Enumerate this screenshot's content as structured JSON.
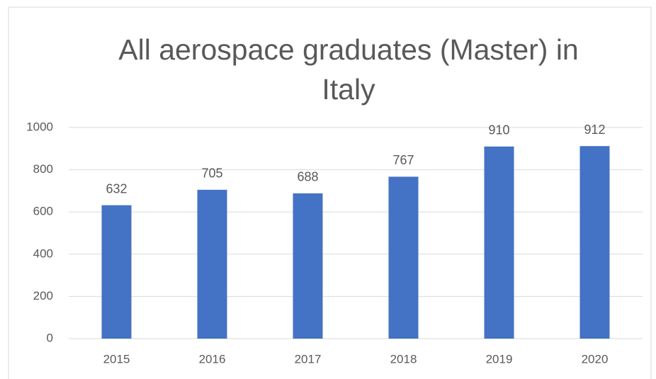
{
  "chart_data": {
    "type": "bar",
    "title": "All aerospace graduates (Master) in Italy",
    "categories": [
      "2015",
      "2016",
      "2017",
      "2018",
      "2019",
      "2020"
    ],
    "values": [
      632,
      705,
      688,
      767,
      910,
      912
    ],
    "color": "#4472c4",
    "ylim": [
      0,
      1000
    ],
    "yticks": [
      0,
      200,
      400,
      600,
      800,
      1000
    ],
    "grid": true
  }
}
